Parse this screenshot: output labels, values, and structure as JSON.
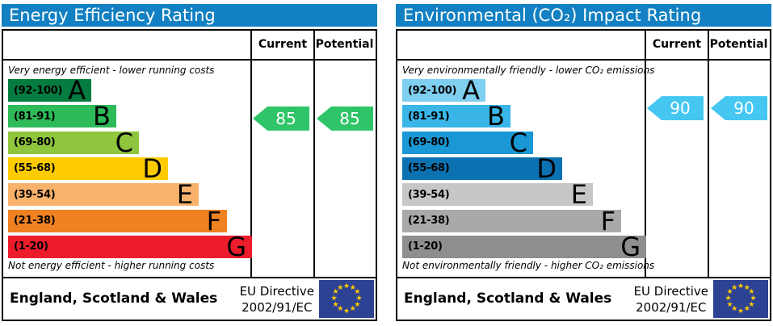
{
  "panels": [
    {
      "title": "Energy Efficiency Rating",
      "header_bg": "#1280c2",
      "columns": {
        "current": "Current",
        "potential": "Potential"
      },
      "note_top": "Very energy efficient - lower running costs",
      "note_bottom": "Not energy efficient - higher running costs",
      "bands": [
        {
          "letter": "A",
          "range": "(92-100)",
          "min": 92,
          "max": 100,
          "color": "#047b3f",
          "width_pct": 34
        },
        {
          "letter": "B",
          "range": "(81-91)",
          "min": 81,
          "max": 91,
          "color": "#2dba58",
          "width_pct": 44.5
        },
        {
          "letter": "C",
          "range": "(69-80)",
          "min": 69,
          "max": 80,
          "color": "#8fc63e",
          "width_pct": 53.6
        },
        {
          "letter": "D",
          "range": "(55-68)",
          "min": 55,
          "max": 68,
          "color": "#fecb00",
          "width_pct": 65.6
        },
        {
          "letter": "E",
          "range": "(39-54)",
          "min": 39,
          "max": 54,
          "color": "#f9b26b",
          "width_pct": 78.1
        },
        {
          "letter": "F",
          "range": "(21-38)",
          "min": 21,
          "max": 38,
          "color": "#f08121",
          "width_pct": 89.7
        },
        {
          "letter": "G",
          "range": "(1-20)",
          "min": 1,
          "max": 20,
          "color": "#ec1c2b",
          "width_pct": 100
        }
      ],
      "current": {
        "value": 85,
        "color": "#2fc467"
      },
      "potential": {
        "value": 85,
        "color": "#2fc467"
      }
    },
    {
      "title": "Environmental (CO₂) Impact Rating",
      "header_bg": "#1280c2",
      "columns": {
        "current": "Current",
        "potential": "Potential"
      },
      "note_top": "Very environmentally friendly - lower CO₂ emissions",
      "note_bottom": "Not environmentally friendly - higher CO₂ emissions",
      "bands": [
        {
          "letter": "A",
          "range": "(92-100)",
          "min": 92,
          "max": 100,
          "color": "#7ecff0",
          "width_pct": 34
        },
        {
          "letter": "B",
          "range": "(81-91)",
          "min": 81,
          "max": 91,
          "color": "#39b6e7",
          "width_pct": 44.5
        },
        {
          "letter": "C",
          "range": "(69-80)",
          "min": 69,
          "max": 80,
          "color": "#1a97d5",
          "width_pct": 53.6
        },
        {
          "letter": "D",
          "range": "(55-68)",
          "min": 55,
          "max": 68,
          "color": "#0b71b1",
          "width_pct": 65.6
        },
        {
          "letter": "E",
          "range": "(39-54)",
          "min": 39,
          "max": 54,
          "color": "#c7c7c7",
          "width_pct": 78.1
        },
        {
          "letter": "F",
          "range": "(21-38)",
          "min": 21,
          "max": 38,
          "color": "#a9a9a9",
          "width_pct": 89.7
        },
        {
          "letter": "G",
          "range": "(1-20)",
          "min": 1,
          "max": 20,
          "color": "#8e8e8e",
          "width_pct": 100
        }
      ],
      "current": {
        "value": 90,
        "color": "#45c7f2"
      },
      "potential": {
        "value": 90,
        "color": "#45c7f2"
      }
    }
  ],
  "footer": {
    "region": "England, Scotland & Wales",
    "directive_line1": "EU Directive",
    "directive_line2": "2002/91/EC",
    "eu_flag": {
      "bg": "#2e4294",
      "star_color": "#ffcc00",
      "star_glyph": "★"
    }
  },
  "chart_data": [
    {
      "type": "bar",
      "orientation": "horizontal",
      "title": "Energy Efficiency Rating",
      "categories": [
        "A (92-100)",
        "B (81-91)",
        "C (69-80)",
        "D (55-68)",
        "E (39-54)",
        "F (21-38)",
        "G (1-20)"
      ],
      "band_bar_relative_lengths": [
        0.34,
        0.445,
        0.536,
        0.656,
        0.781,
        0.897,
        1.0
      ],
      "band_colors": [
        "#047b3f",
        "#2dba58",
        "#8fc63e",
        "#fecb00",
        "#f9b26b",
        "#f08121",
        "#ec1c2b"
      ],
      "series": [
        {
          "name": "Current",
          "values": [
            85
          ]
        },
        {
          "name": "Potential",
          "values": [
            85
          ]
        }
      ],
      "scale_range": [
        1,
        100
      ],
      "annotations": [
        "Very energy efficient - lower running costs",
        "Not energy efficient - higher running costs",
        "England, Scotland & Wales",
        "EU Directive 2002/91/EC"
      ]
    },
    {
      "type": "bar",
      "orientation": "horizontal",
      "title": "Environmental (CO₂) Impact Rating",
      "categories": [
        "A (92-100)",
        "B (81-91)",
        "C (69-80)",
        "D (55-68)",
        "E (39-54)",
        "F (21-38)",
        "G (1-20)"
      ],
      "band_bar_relative_lengths": [
        0.34,
        0.445,
        0.536,
        0.656,
        0.781,
        0.897,
        1.0
      ],
      "band_colors": [
        "#7ecff0",
        "#39b6e7",
        "#1a97d5",
        "#0b71b1",
        "#c7c7c7",
        "#a9a9a9",
        "#8e8e8e"
      ],
      "series": [
        {
          "name": "Current",
          "values": [
            90
          ]
        },
        {
          "name": "Potential",
          "values": [
            90
          ]
        }
      ],
      "scale_range": [
        1,
        100
      ],
      "annotations": [
        "Very environmentally friendly - lower CO₂ emissions",
        "Not environmentally friendly - higher CO₂ emissions",
        "England, Scotland & Wales",
        "EU Directive 2002/91/EC"
      ]
    }
  ]
}
